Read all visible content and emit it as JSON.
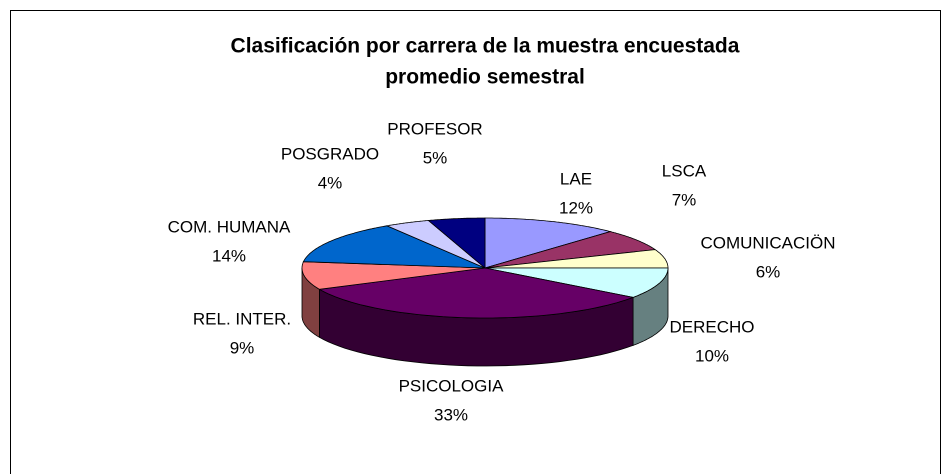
{
  "chart_data": {
    "type": "pie",
    "title": [
      "Clasificación por carrera de la muestra encuestada",
      "promedio semestral"
    ],
    "categories": [
      "LAE",
      "LSCA",
      "COMUNICACIÖN",
      "DERECHO",
      "PSICOLOGIA",
      "REL. INTER.",
      "COM. HUMANA",
      "POSGRADO",
      "PROFESOR"
    ],
    "values": [
      12,
      7,
      6,
      10,
      33,
      9,
      14,
      4,
      5
    ],
    "value_labels": [
      "12%",
      "7%",
      "6%",
      "10%",
      "33%",
      "9%",
      "14%",
      "4%",
      "5%"
    ],
    "colors": [
      "#9999ff",
      "#993366",
      "#ffffcc",
      "#ccffff",
      "#660066",
      "#ff8080",
      "#0066cc",
      "#ccccff",
      "#000080"
    ]
  }
}
